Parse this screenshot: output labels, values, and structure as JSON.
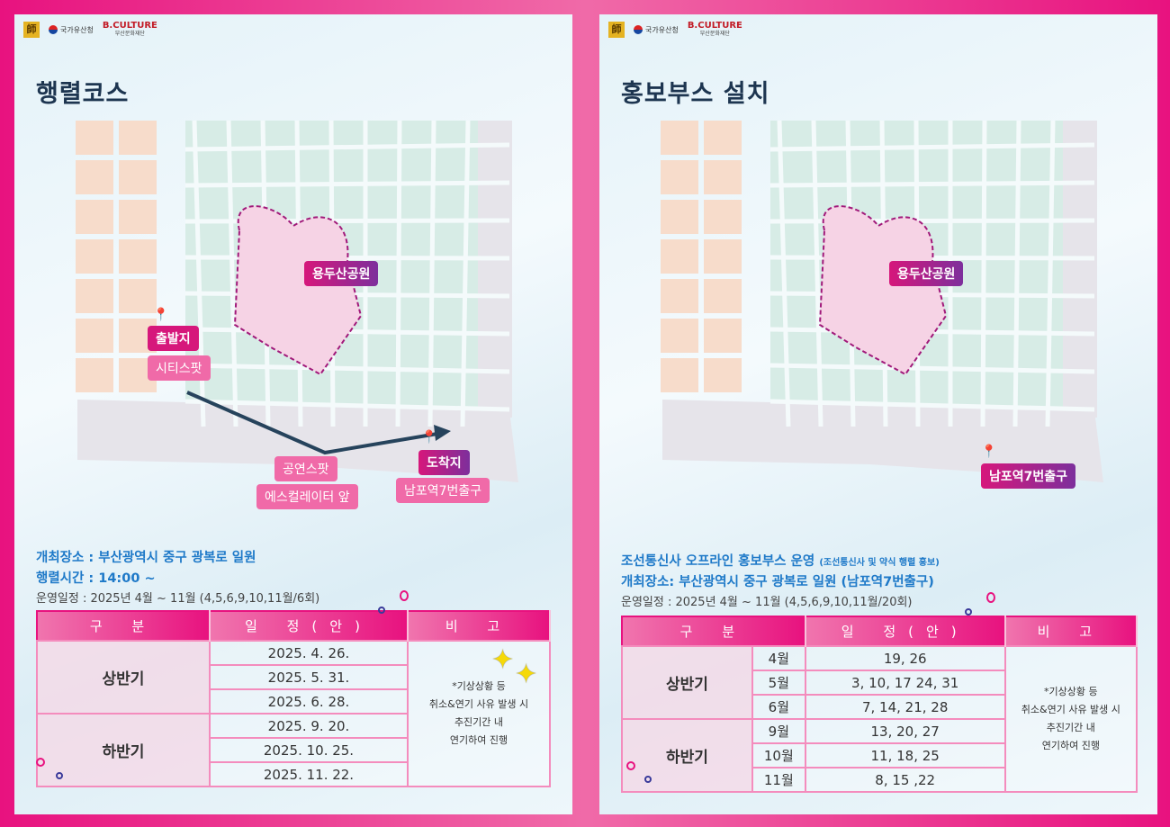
{
  "logos": {
    "logo1": "국가유산청",
    "logo2": "부산문화재단"
  },
  "left": {
    "title": "행렬코스",
    "map_labels": {
      "park": "용두산공원",
      "start": "출발지",
      "start_place": "시티스팟",
      "perform": "공연스팟",
      "perform_place": "에스컬레이터 앞",
      "end": "도착지",
      "end_place": "남포역7번출구"
    },
    "info": {
      "venue": "개최장소 : 부산광역시 중구 광복로 일원",
      "time": "행렬시간 : 14:00 ~",
      "schedule": "운영일정 : 2025년 4월 ~ 11월 (4,5,6,9,10,11월/6회)"
    },
    "table": {
      "headers": [
        "구 분",
        "일 정(안)",
        "비 고"
      ],
      "groups": [
        {
          "label": "상반기",
          "dates": [
            "2025. 4. 26.",
            "2025. 5. 31.",
            "2025. 6. 28."
          ]
        },
        {
          "label": "하반기",
          "dates": [
            "2025. 9. 20.",
            "2025. 10. 25.",
            "2025. 11. 22."
          ]
        }
      ],
      "note": [
        "*기상상황 등",
        "취소&연기 사유 발생 시",
        "추진기간 내",
        "연기하여 진행"
      ]
    }
  },
  "right": {
    "title": "홍보부스 설치",
    "map_labels": {
      "park": "용두산공원",
      "booth": "남포역7번출구"
    },
    "info": {
      "main": "조선통신사 오프라인 홍보부스 운영",
      "main_sub": "(조선통신사 및 약식 행렬 홍보)",
      "venue": "개최장소: 부산광역시 중구 광복로 일원 (남포역7번출구)",
      "schedule": "운영일정 : 2025년 4월 ~ 11월 (4,5,6,9,10,11월/20회)"
    },
    "table": {
      "headers": [
        "구 분",
        "일 정(안)",
        "비 고"
      ],
      "groups": [
        {
          "label": "상반기",
          "rows": [
            {
              "month": "4월",
              "days": "19, 26"
            },
            {
              "month": "5월",
              "days": "3, 10, 17 24, 31"
            },
            {
              "month": "6월",
              "days": "7, 14, 21, 28"
            }
          ]
        },
        {
          "label": "하반기",
          "rows": [
            {
              "month": "9월",
              "days": "13, 20, 27"
            },
            {
              "month": "10월",
              "days": "11, 18, 25"
            },
            {
              "month": "11월",
              "days": "8, 15 ,22"
            }
          ]
        }
      ],
      "note": [
        "*기상상황 등",
        "취소&연기 사유 발생 시",
        "추진기간 내",
        "연기하여 진행"
      ]
    }
  },
  "colors": {
    "accent": "#e8127f",
    "title": "#1d3550",
    "info": "#1e79c8",
    "park": "#f6d3e5"
  }
}
